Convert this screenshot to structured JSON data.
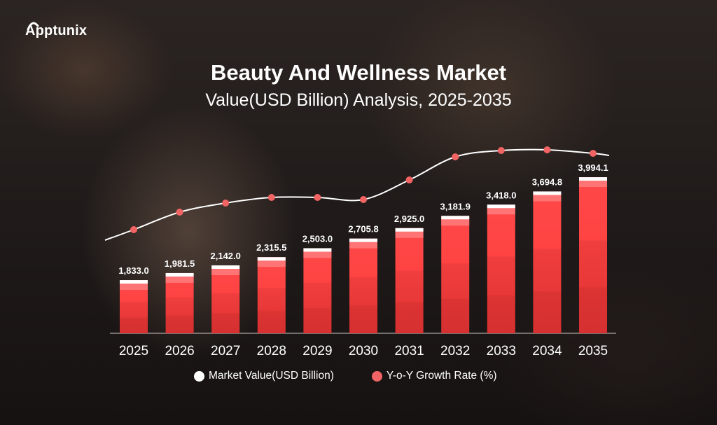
{
  "brand": {
    "logo_text": "Apptunix"
  },
  "chart_data": {
    "type": "bar",
    "title": "Beauty And Wellness Market",
    "subtitle": "Value(USD Billion) Analysis, 2025-2035",
    "categories": [
      "2025",
      "2026",
      "2027",
      "2028",
      "2029",
      "2030",
      "2031",
      "2032",
      "2033",
      "2034",
      "2035"
    ],
    "series": [
      {
        "name": "Market Value(USD Billion)",
        "type": "bar",
        "values": [
          1833.0,
          1981.5,
          2142.0,
          2315.5,
          2503.0,
          2705.8,
          2925.0,
          3181.9,
          3418.0,
          3694.8,
          3994.1
        ],
        "labels": [
          "1,833.0",
          "1,981.5",
          "2,142.0",
          "2,315.5",
          "2,503.0",
          "2,705.8",
          "2,925.0",
          "3,181.9",
          "3,418.0",
          "3,694.8",
          "3,994.1"
        ],
        "color": "#ff4545"
      },
      {
        "name": "Y-o-Y Growth Rate (%)",
        "type": "line",
        "relative_levels": [
          15,
          40,
          53,
          61,
          61,
          58,
          86,
          119,
          128,
          129,
          124
        ],
        "color": "#f26464"
      }
    ],
    "xlabel": "",
    "ylabel": "",
    "ylim": [
      716,
      4100
    ],
    "grid": false,
    "legend": "bottom"
  }
}
